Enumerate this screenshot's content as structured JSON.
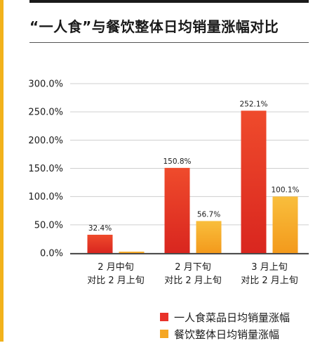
{
  "title": "“一人食”与餐饮整体日均销量涨幅对比",
  "colors": {
    "accent_strip": "#f2b21b",
    "series_red": "#e8322a",
    "series_orange": "#f5a623"
  },
  "chart_data": {
    "type": "bar",
    "categories": [
      [
        "2月中旬",
        "对比2月上旬"
      ],
      [
        "2月下旬",
        "对比2月上旬"
      ],
      [
        "3月上旬",
        "对比2月上旬"
      ]
    ],
    "category_display": [
      [
        "2 月中旬",
        "对比 2 月上旬"
      ],
      [
        "2 月下旬",
        "对比 2 月上旬"
      ],
      [
        "3 月上旬",
        "对比 2 月上旬"
      ]
    ],
    "series": [
      {
        "name": "一人食菜品日均销量涨幅",
        "values": [
          32.4,
          150.8,
          252.1
        ],
        "labels": [
          "32.4%",
          "150.8%",
          "252.1%"
        ],
        "color": "#e8322a"
      },
      {
        "name": "餐饮整体日均销量涨幅",
        "values": [
          2.5,
          56.7,
          100.1
        ],
        "labels": [
          "",
          "56.7%",
          "100.1%"
        ],
        "color": "#f5a623"
      }
    ],
    "yticks": [
      "0.0%",
      "50.0%",
      "100.0%",
      "150.0%",
      "200.0%",
      "250.0%",
      "300.0%"
    ],
    "ylim": [
      0,
      300
    ],
    "grid": true,
    "legend_position": "bottom-right"
  }
}
